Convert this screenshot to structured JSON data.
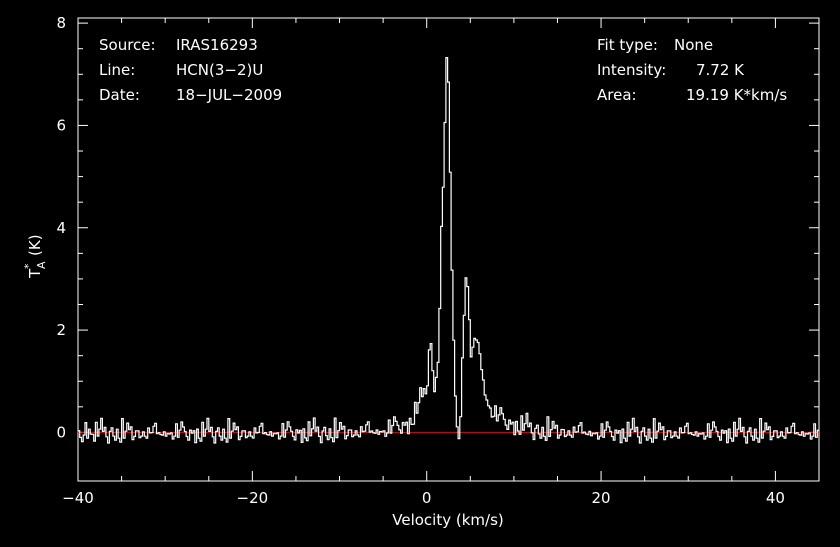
{
  "info_left": {
    "source_label": "Source:",
    "source_value": "IRAS16293",
    "line_label": "Line:",
    "line_value": "HCN(3−2)U",
    "date_label": "Date:",
    "date_value": "18−JUL−2009"
  },
  "info_right": {
    "fit_label": "Fit type:",
    "fit_value": "None",
    "intensity_label": "Intensity:",
    "intensity_value": "7.72 K",
    "area_label": "Area:",
    "area_value": "19.19 K*km/s"
  },
  "chart_data": {
    "type": "line",
    "xlabel": "Velocity (km/s)",
    "ylabel_main": "T",
    "ylabel_sup": "*",
    "ylabel_sub": "A",
    "ylabel_unit": "(K)",
    "xlim": [
      -40,
      45
    ],
    "ylim": [
      -0.95,
      8.1
    ],
    "x_ticks": [
      -40,
      -20,
      0,
      20,
      40
    ],
    "x_tick_labels": [
      "−40",
      "−20",
      "0",
      "20",
      "40"
    ],
    "y_ticks": [
      0,
      2,
      4,
      6,
      8
    ],
    "y_tick_labels": [
      "0",
      "2",
      "4",
      "6",
      "8"
    ],
    "baseline": 0,
    "colors": {
      "spectrum": "#ffffff",
      "baseline": "#cc1111",
      "axes": "#ffffff",
      "background": "#000000"
    },
    "series": [
      {
        "x": [
          -40,
          -30,
          -20,
          -10,
          -5,
          -2,
          -1,
          0,
          0.4,
          0.7,
          1.0,
          1.3,
          1.6,
          2.0,
          2.4,
          2.7,
          3.0,
          3.3,
          3.6,
          3.9,
          4.2,
          4.5,
          4.8,
          5.1,
          5.4,
          5.7,
          6.0,
          6.3,
          6.6,
          7.0,
          7.5,
          8.0,
          9.0,
          10.0,
          11.5,
          13.0,
          20,
          30,
          45
        ],
        "y": [
          0.02,
          0.02,
          0.02,
          0.03,
          0.06,
          0.2,
          0.5,
          0.9,
          1.85,
          1.3,
          0.8,
          1.5,
          3.2,
          5.5,
          7.72,
          5.0,
          2.5,
          0.7,
          -0.2,
          0.4,
          2.0,
          3.15,
          2.6,
          1.5,
          1.6,
          1.85,
          1.75,
          1.3,
          0.9,
          0.6,
          0.45,
          0.35,
          0.25,
          0.18,
          0.12,
          0.06,
          0.02,
          0.02,
          0.02
        ]
      }
    ]
  }
}
